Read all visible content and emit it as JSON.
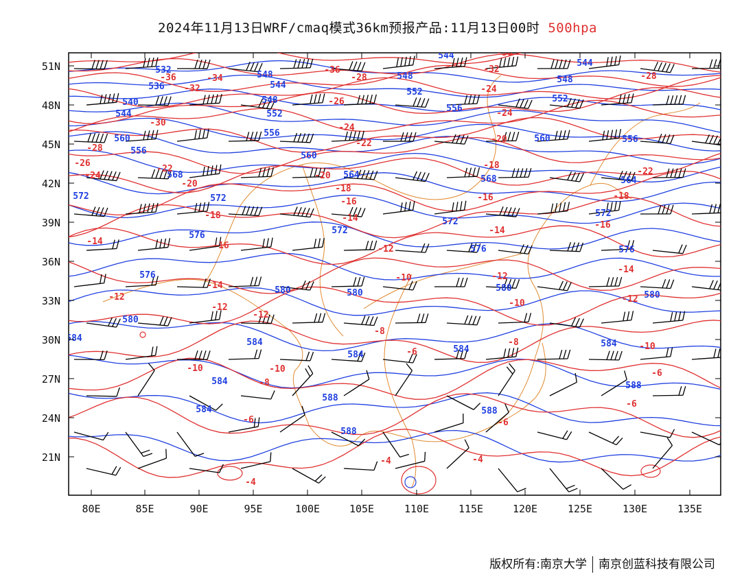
{
  "title": {
    "main": "2024年11月13日WRF/cmaq模式36km预报产品:11月13日00时",
    "level": "500hpa"
  },
  "axes": {
    "lat_labels": [
      "51N",
      "48N",
      "45N",
      "42N",
      "39N",
      "36N",
      "33N",
      "30N",
      "27N",
      "24N",
      "21N"
    ],
    "lon_labels": [
      "80E",
      "85E",
      "90E",
      "95E",
      "100E",
      "105E",
      "110E",
      "115E",
      "120E",
      "125E",
      "130E",
      "135E"
    ]
  },
  "colors": {
    "height_contour": "#2040e0",
    "temperature_contour": "#e03030",
    "borders": "#e08a30",
    "wind_barbs": "#000000"
  },
  "height_labels": [
    "532",
    "536",
    "540",
    "544",
    "548",
    "552",
    "556",
    "560",
    "564",
    "568",
    "572",
    "576",
    "580",
    "584",
    "588"
  ],
  "temperature_labels": [
    "-36",
    "-34",
    "-32",
    "-30",
    "-28",
    "-26",
    "-24",
    "-22",
    "-20",
    "-18",
    "-16",
    "-14",
    "-12",
    "-10",
    "-8",
    "-6",
    "-4"
  ],
  "footer": {
    "left": "版权所有:南京大学",
    "right": "南京创蓝科技有限公司"
  }
}
